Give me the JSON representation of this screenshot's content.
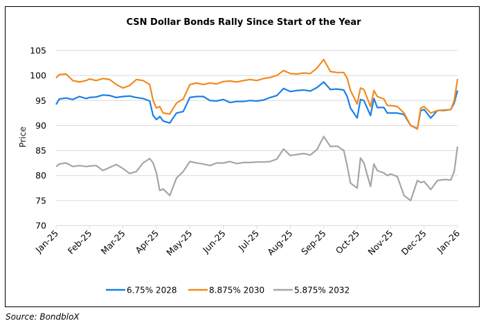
{
  "chart_data": {
    "type": "line",
    "title": "CSN Dollar Bonds Rally Since Start of the Year",
    "xlabel": "",
    "ylabel": "Price",
    "ylim": [
      70,
      105
    ],
    "yticks": [
      70,
      75,
      80,
      85,
      90,
      95,
      100,
      105
    ],
    "grid": true,
    "legend_position": "bottom",
    "xtick_labels": [
      "Jan-25",
      "Feb-25",
      "Mar-25",
      "Apr-25",
      "May-25",
      "Jun-25",
      "Jul-25",
      "Aug-25",
      "Sep-25",
      "Oct-25",
      "Nov-25",
      "Dec-25",
      "Jan-26"
    ],
    "x_units": "months since Jan-25",
    "series": [
      {
        "name": "6.75% 2028",
        "color": "#1a7fe6",
        "x": [
          0,
          0.1,
          0.3,
          0.5,
          0.7,
          0.9,
          1.0,
          1.2,
          1.4,
          1.6,
          1.8,
          2.0,
          2.2,
          2.4,
          2.6,
          2.8,
          2.9,
          3.0,
          3.1,
          3.2,
          3.4,
          3.6,
          3.8,
          4.0,
          4.2,
          4.4,
          4.6,
          4.8,
          5.0,
          5.2,
          5.4,
          5.6,
          5.8,
          6.0,
          6.2,
          6.4,
          6.6,
          6.8,
          7.0,
          7.2,
          7.4,
          7.6,
          7.8,
          8.0,
          8.2,
          8.4,
          8.6,
          8.7,
          8.8,
          9.0,
          9.1,
          9.2,
          9.4,
          9.5,
          9.6,
          9.8,
          9.9,
          10.0,
          10.2,
          10.4,
          10.6,
          10.8,
          10.9,
          11.0,
          11.2,
          11.4,
          11.6,
          11.8,
          11.9,
          12.0
        ],
        "values": [
          94.2,
          95.3,
          95.5,
          95.2,
          95.8,
          95.4,
          95.6,
          95.7,
          96.1,
          96.0,
          95.6,
          95.8,
          95.9,
          95.6,
          95.4,
          94.9,
          92.0,
          91.2,
          91.8,
          90.9,
          90.5,
          92.5,
          92.8,
          95.6,
          95.8,
          95.8,
          95.0,
          94.9,
          95.2,
          94.6,
          94.8,
          94.8,
          95.0,
          94.9,
          95.1,
          95.6,
          96.0,
          97.4,
          96.8,
          97.0,
          97.1,
          96.9,
          97.6,
          98.7,
          97.2,
          97.3,
          97.1,
          95.8,
          93.5,
          91.5,
          95.2,
          95.0,
          92.0,
          95.4,
          93.6,
          93.6,
          92.5,
          92.5,
          92.5,
          92.2,
          90.0,
          89.4,
          93.0,
          93.2,
          91.5,
          93.0,
          93.0,
          93.2,
          94.5,
          97.0
        ]
      },
      {
        "name": "8.875% 2030",
        "color": "#f28a1c",
        "x": [
          0,
          0.1,
          0.3,
          0.5,
          0.7,
          0.9,
          1.0,
          1.2,
          1.4,
          1.6,
          1.8,
          2.0,
          2.2,
          2.4,
          2.6,
          2.8,
          2.9,
          3.0,
          3.1,
          3.2,
          3.4,
          3.6,
          3.8,
          4.0,
          4.2,
          4.4,
          4.6,
          4.8,
          5.0,
          5.2,
          5.4,
          5.6,
          5.8,
          6.0,
          6.2,
          6.4,
          6.6,
          6.8,
          7.0,
          7.2,
          7.4,
          7.6,
          7.8,
          8.0,
          8.2,
          8.4,
          8.6,
          8.7,
          8.8,
          9.0,
          9.1,
          9.2,
          9.4,
          9.5,
          9.6,
          9.8,
          9.9,
          10.0,
          10.2,
          10.4,
          10.6,
          10.8,
          10.9,
          11.0,
          11.2,
          11.4,
          11.6,
          11.8,
          11.9,
          12.0
        ],
        "values": [
          99.5,
          100.2,
          100.3,
          99.0,
          98.7,
          99.0,
          99.3,
          99.0,
          99.4,
          99.2,
          98.2,
          97.5,
          98.0,
          99.2,
          99.0,
          98.2,
          95.0,
          93.5,
          93.8,
          92.5,
          92.3,
          94.5,
          95.3,
          98.2,
          98.5,
          98.2,
          98.5,
          98.3,
          98.8,
          98.9,
          98.7,
          99.0,
          99.2,
          99.0,
          99.4,
          99.6,
          100.0,
          101.0,
          100.4,
          100.3,
          100.5,
          100.4,
          101.5,
          103.2,
          100.8,
          100.6,
          100.6,
          99.5,
          97.0,
          94.3,
          97.5,
          97.2,
          93.8,
          97.0,
          95.8,
          95.3,
          94.0,
          94.0,
          93.8,
          92.5,
          90.0,
          89.3,
          93.5,
          93.8,
          92.5,
          93.0,
          93.1,
          93.2,
          95.0,
          99.3
        ]
      },
      {
        "name": "5.875% 2032",
        "color": "#a5a5a5",
        "x": [
          0,
          0.1,
          0.3,
          0.5,
          0.7,
          0.9,
          1.0,
          1.2,
          1.4,
          1.6,
          1.8,
          2.0,
          2.2,
          2.4,
          2.6,
          2.8,
          2.9,
          3.0,
          3.1,
          3.2,
          3.4,
          3.6,
          3.8,
          4.0,
          4.2,
          4.4,
          4.6,
          4.8,
          5.0,
          5.2,
          5.4,
          5.6,
          5.8,
          6.0,
          6.2,
          6.4,
          6.6,
          6.8,
          7.0,
          7.2,
          7.4,
          7.6,
          7.8,
          8.0,
          8.2,
          8.4,
          8.6,
          8.7,
          8.8,
          9.0,
          9.1,
          9.2,
          9.4,
          9.5,
          9.6,
          9.8,
          9.9,
          10.0,
          10.2,
          10.4,
          10.6,
          10.8,
          10.9,
          11.0,
          11.2,
          11.4,
          11.6,
          11.8,
          11.9,
          12.0
        ],
        "values": [
          81.8,
          82.3,
          82.5,
          81.8,
          82.0,
          81.8,
          81.9,
          82.0,
          81.0,
          81.6,
          82.2,
          81.4,
          80.4,
          80.8,
          82.5,
          83.4,
          82.5,
          80.5,
          77.0,
          77.3,
          76.0,
          79.5,
          80.8,
          82.8,
          82.5,
          82.3,
          82.0,
          82.5,
          82.5,
          82.8,
          82.4,
          82.6,
          82.6,
          82.7,
          82.7,
          82.8,
          83.3,
          85.3,
          84.0,
          84.2,
          84.4,
          84.1,
          85.2,
          87.8,
          85.8,
          85.9,
          85.0,
          82.0,
          78.5,
          77.5,
          83.5,
          82.5,
          77.8,
          82.3,
          81.0,
          80.5,
          80.0,
          80.3,
          79.8,
          76.0,
          75.0,
          79.0,
          78.6,
          78.8,
          77.2,
          79.0,
          79.2,
          79.1,
          80.8,
          85.8
        ]
      }
    ]
  },
  "source": "Source: BondbloX"
}
